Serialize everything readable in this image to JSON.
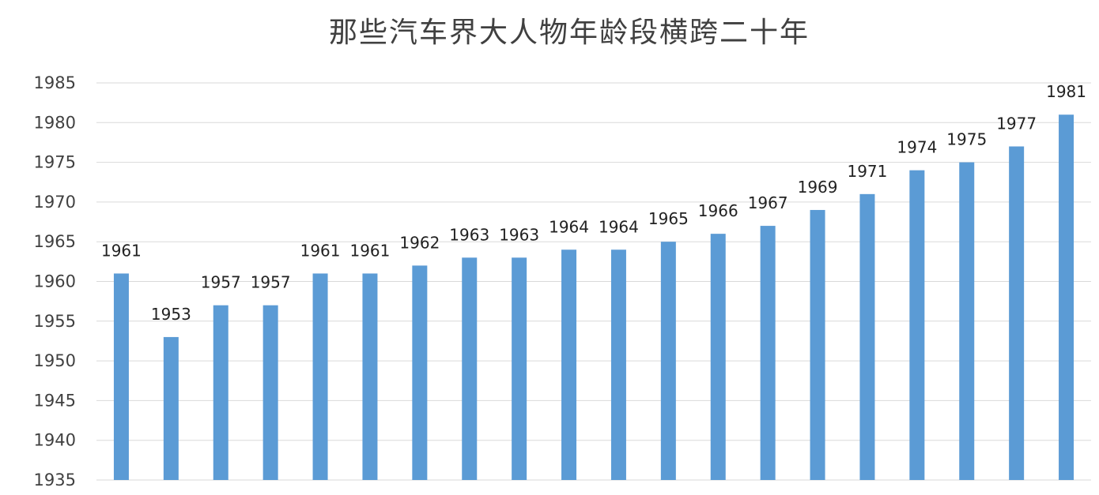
{
  "chart_data": {
    "type": "bar",
    "title": "那些汽车界大人物年龄段横跨二十年",
    "xlabel": "",
    "ylabel": "",
    "ylim": [
      1935,
      1985
    ],
    "yticks": [
      1935,
      1940,
      1945,
      1950,
      1955,
      1960,
      1965,
      1970,
      1975,
      1980,
      1985
    ],
    "grid": true,
    "legend": "none",
    "bar_color": "#5b9bd5",
    "values": [
      1961,
      1953,
      1957,
      1957,
      1961,
      1961,
      1962,
      1963,
      1963,
      1964,
      1964,
      1965,
      1966,
      1967,
      1969,
      1971,
      1974,
      1975,
      1977,
      1981
    ]
  }
}
